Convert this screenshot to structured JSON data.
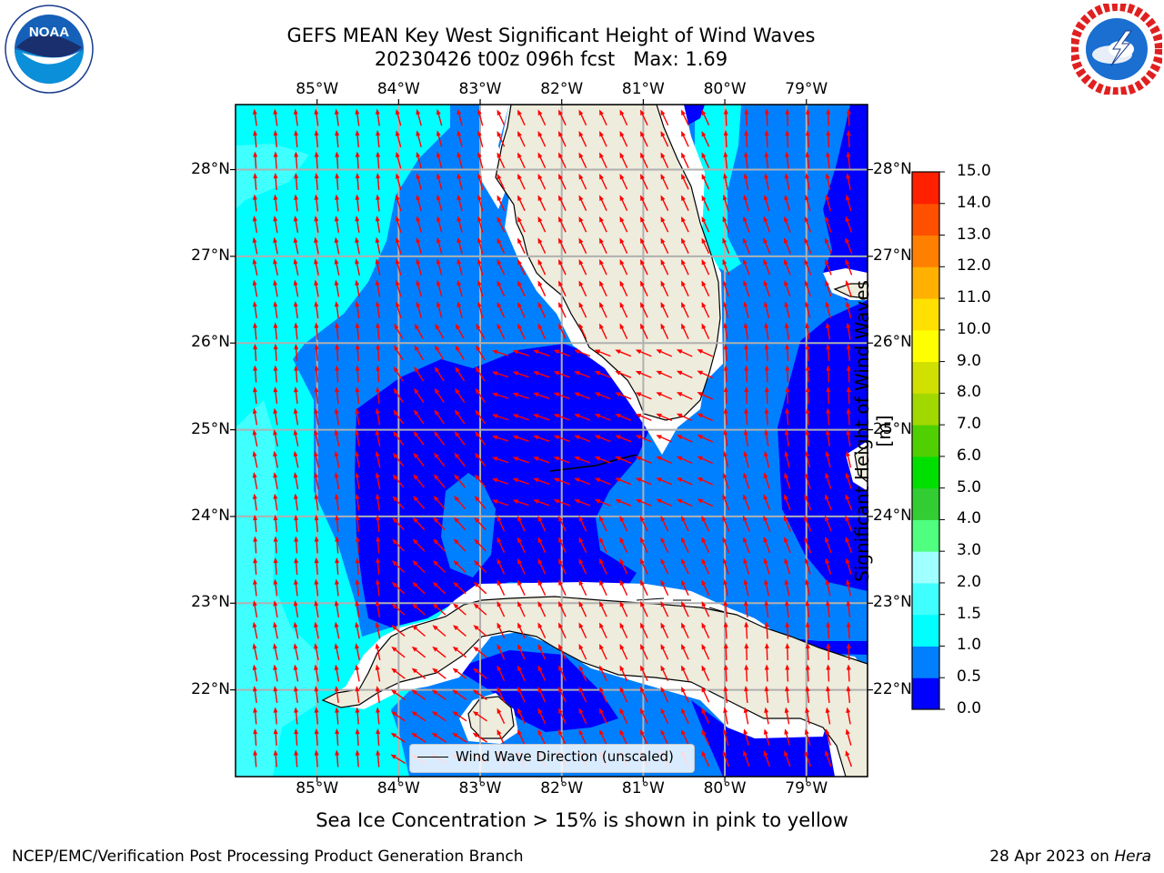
{
  "title": {
    "line1": "GEFS MEAN Key West Significant Height of Wind Waves",
    "line2": "20230426 t00z 096h fcst   Max: 1.69"
  },
  "logos": {
    "left": {
      "name": "NOAA",
      "ring_text": "NATIONAL OCEANIC AND ATMOSPHERIC ADMINISTRATION",
      "bottom_text": "U.S. DEPARTMENT OF COMMERCE"
    },
    "right": {
      "ring_text": "NATIONAL WEATHER SERVICE"
    }
  },
  "map": {
    "lon_labels": [
      "85°W",
      "84°W",
      "83°W",
      "82°W",
      "81°W",
      "80°W",
      "79°W"
    ],
    "lat_labels": [
      "28°N",
      "27°N",
      "26°N",
      "25°N",
      "24°N",
      "23°N",
      "22°N"
    ],
    "lon_range": [
      -86.0,
      -78.25
    ],
    "lat_range": [
      21.0,
      28.75
    ],
    "legend_text": "Wind Wave Direction (unscaled)",
    "arrow_color": "#ff0000",
    "land_color": "#eeecdc"
  },
  "colorbar": {
    "label": "Significant Height of Wind Waves [m]",
    "ticks": [
      "0.0",
      "0.5",
      "1.0",
      "1.5",
      "2.0",
      "3.0",
      "4.0",
      "5.0",
      "6.0",
      "7.0",
      "8.0",
      "9.0",
      "10.0",
      "11.0",
      "12.0",
      "13.0",
      "14.0",
      "15.0"
    ],
    "colors": [
      "#0000ff",
      "#0080ff",
      "#00ffff",
      "#40ffff",
      "#a0ffff",
      "#50ff80",
      "#32cd32",
      "#00e000",
      "#50d000",
      "#a0d800",
      "#d0e000",
      "#ffff00",
      "#ffe000",
      "#ffb000",
      "#ff8000",
      "#ff5000",
      "#ff2000"
    ]
  },
  "sea_ice_note": "Sea Ice Concentration > 15% is shown in pink to yellow",
  "footer": {
    "left": "NCEP/EMC/Verification Post Processing Product Generation Branch",
    "right_prefix": "28 Apr 2023 on ",
    "right_machine": "Hera"
  }
}
